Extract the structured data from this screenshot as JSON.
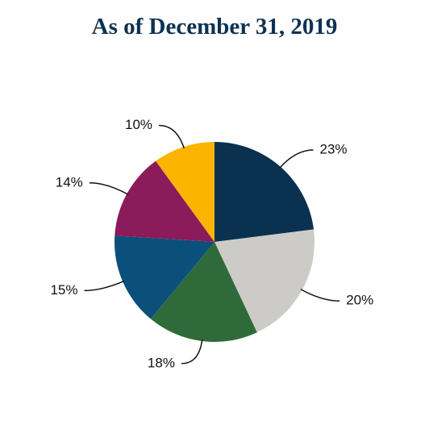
{
  "chart_data": {
    "type": "pie",
    "title": "As of December 31, 2019",
    "values": [
      23,
      20,
      18,
      15,
      14,
      10
    ],
    "value_labels": [
      "23%",
      "20%",
      "18%",
      "15%",
      "14%",
      "10%"
    ],
    "colors": [
      "#0a3150",
      "#cdcbc7",
      "#2f6b3a",
      "#0b4f7b",
      "#8b1b5b",
      "#fcb400"
    ]
  }
}
